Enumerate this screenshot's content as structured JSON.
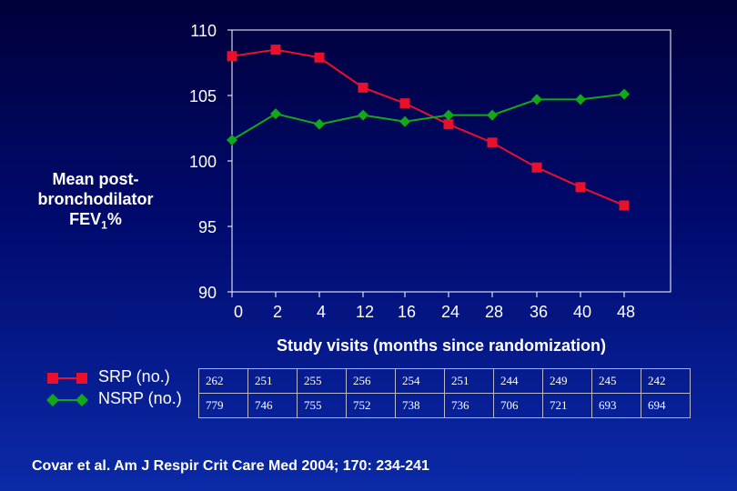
{
  "chart_data": {
    "type": "line",
    "ylabel_lines": [
      "Mean post-",
      "bronchodilator",
      "FEV"
    ],
    "ylabel_subscript": "1",
    "ylabel_suffix": "%",
    "xlabel": "Study visits (months since randomization)",
    "categories": [
      "0",
      "2",
      "4",
      "12",
      "16",
      "24",
      "28",
      "36",
      "40",
      "48"
    ],
    "ylim": [
      90,
      110
    ],
    "yticks": [
      90,
      95,
      100,
      105,
      110
    ],
    "series": [
      {
        "name": "SRP (no.)",
        "color": "#e8102a",
        "marker": "square",
        "values": [
          108.0,
          108.5,
          107.9,
          105.6,
          104.4,
          102.8,
          101.4,
          99.5,
          98.0,
          96.6
        ]
      },
      {
        "name": "NSRP (no.)",
        "color": "#12a81a",
        "marker": "diamond",
        "values": [
          101.6,
          103.6,
          102.8,
          103.5,
          103.0,
          103.5,
          103.5,
          104.7,
          104.7,
          105.1
        ]
      }
    ]
  },
  "table": {
    "rows": [
      {
        "label": "SRP (no.)",
        "values": [
          "262",
          "251",
          "255",
          "256",
          "254",
          "251",
          "244",
          "249",
          "245",
          "242"
        ]
      },
      {
        "label": "NSRP (no.)",
        "values": [
          "779",
          "746",
          "755",
          "752",
          "738",
          "736",
          "706",
          "721",
          "693",
          "694"
        ]
      }
    ]
  },
  "citation": "Covar et al. Am J Respir Crit Care Med 2004; 170: 234-241"
}
